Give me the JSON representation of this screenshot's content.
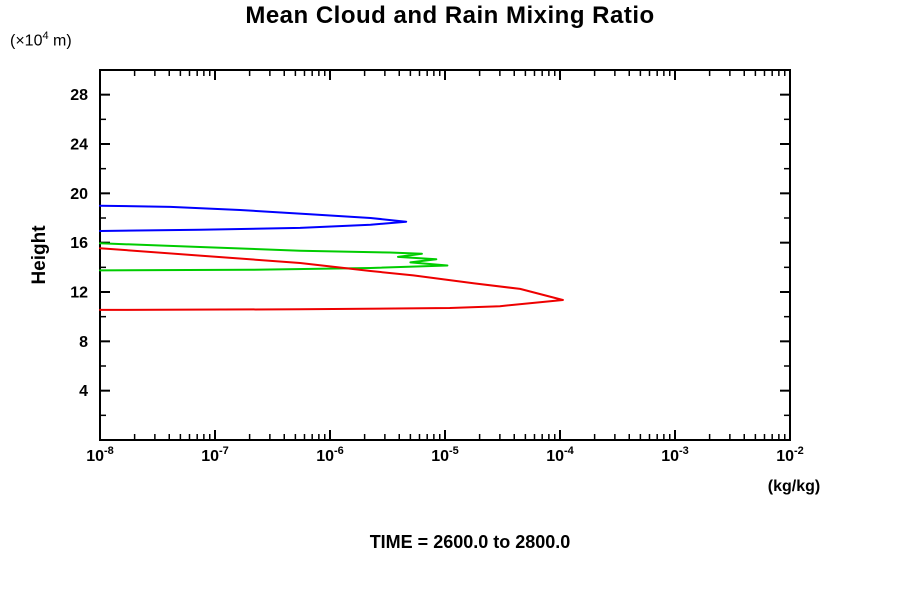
{
  "title": "Mean Cloud and Rain Mixing Ratio",
  "y_axis": {
    "unit_prefix": "(×10",
    "unit_sup": "4",
    "unit_suffix": " m)",
    "label": "Height"
  },
  "x_axis": {
    "unit_label": "(kg/kg)"
  },
  "footer": {
    "text": "TIME = 2600.0 to 2800.0"
  },
  "chart_data": {
    "type": "line",
    "x_scale": "log",
    "xlim": [
      1e-08,
      0.01
    ],
    "ylim": [
      0,
      30
    ],
    "grid": false,
    "legend": "none",
    "axis_color": "#000000",
    "background": "#ffffff",
    "x_tick_base": "10",
    "x_tick_exponents": [
      -8,
      -7,
      -6,
      -5,
      -4,
      -3,
      -2
    ],
    "y_major_ticks": [
      4,
      8,
      12,
      16,
      20,
      24,
      28
    ],
    "y_minor_ticks": [
      2,
      6,
      10,
      14,
      18,
      22,
      26,
      30
    ],
    "series": [
      {
        "name": "blue",
        "color": "#0000ff",
        "points": [
          [
            1e-08,
            19.0
          ],
          [
            4.1e-08,
            18.9
          ],
          [
            1.65e-07,
            18.65
          ],
          [
            6.7e-07,
            18.3
          ],
          [
            2.25e-06,
            18.0
          ],
          [
            4.6e-06,
            17.7
          ],
          [
            2.25e-06,
            17.45
          ],
          [
            5.5e-07,
            17.2
          ],
          [
            7.4e-08,
            17.05
          ],
          [
            1e-08,
            16.95
          ]
        ]
      },
      {
        "name": "green",
        "color": "#00cc00",
        "points": [
          [
            1e-08,
            15.95
          ],
          [
            7.4e-08,
            15.65
          ],
          [
            5.5e-07,
            15.35
          ],
          [
            3.3e-06,
            15.2
          ],
          [
            6.3e-06,
            15.1
          ],
          [
            3.9e-06,
            14.85
          ],
          [
            8.4e-06,
            14.65
          ],
          [
            5e-06,
            14.4
          ],
          [
            1.05e-05,
            14.15
          ],
          [
            2.25e-06,
            13.95
          ],
          [
            2e-07,
            13.8
          ],
          [
            1e-08,
            13.75
          ]
        ]
      },
      {
        "name": "red",
        "color": "#ee0000",
        "points": [
          [
            1e-08,
            15.55
          ],
          [
            7.4e-08,
            14.95
          ],
          [
            5.5e-07,
            14.35
          ],
          [
            2.25e-06,
            13.7
          ],
          [
            5.3e-06,
            13.35
          ],
          [
            1.8e-05,
            12.7
          ],
          [
            4.5e-05,
            12.25
          ],
          [
            0.000106,
            11.35
          ],
          [
            3e-05,
            10.85
          ],
          [
            1.1e-05,
            10.7
          ],
          [
            5.5e-07,
            10.6
          ],
          [
            1e-08,
            10.55
          ]
        ]
      }
    ]
  }
}
